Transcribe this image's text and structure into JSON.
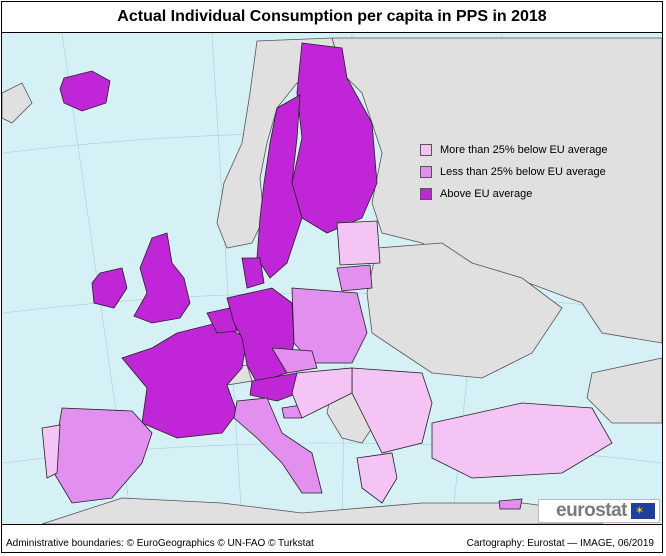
{
  "title": "Actual Individual Consumption per capita in PPS in 2018",
  "legend": [
    {
      "label": "More than 25% below EU average",
      "color": "#f4c4f4"
    },
    {
      "label": "Less than 25% below EU average",
      "color": "#e38ff0"
    },
    {
      "label": "Above EU average",
      "color": "#c026d8"
    }
  ],
  "colors": {
    "sea": "#d6f1f6",
    "non_eu": "#e0e0e0",
    "border": "#222222"
  },
  "footer": {
    "admin": "Administrative boundaries: © EuroGeographics © UN-FAO © Turkstat",
    "cartography": "Cartography: Eurostat — IMAGE, 06/2019"
  },
  "logo": {
    "text": "eurostat",
    "flag": "eu-flag-icon"
  }
}
